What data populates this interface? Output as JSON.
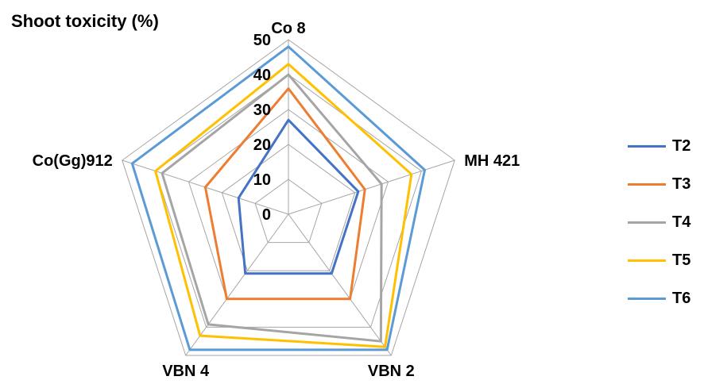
{
  "chart_data": {
    "type": "radar",
    "title": "Shoot toxicity (%)",
    "axes": [
      "Co 8",
      "MH 421",
      "VBN 2",
      "VBN 4",
      "Co(Gg)912"
    ],
    "rlim": [
      0,
      50
    ],
    "ticks": [
      0,
      10,
      20,
      30,
      40,
      50
    ],
    "grid": true,
    "legend_position": "right",
    "series": [
      {
        "name": "T2",
        "color": "#4472C4",
        "values": [
          27,
          21,
          21,
          21,
          15
        ]
      },
      {
        "name": "T3",
        "color": "#ED7D31",
        "values": [
          36,
          23,
          30,
          30,
          25
        ]
      },
      {
        "name": "T4",
        "color": "#A5A5A5",
        "values": [
          40,
          28,
          45,
          39,
          38
        ]
      },
      {
        "name": "T5",
        "color": "#FFC000",
        "values": [
          43,
          37,
          47,
          43,
          40
        ]
      },
      {
        "name": "T6",
        "color": "#5B9BD5",
        "values": [
          48,
          41,
          48,
          48,
          47
        ]
      }
    ]
  }
}
